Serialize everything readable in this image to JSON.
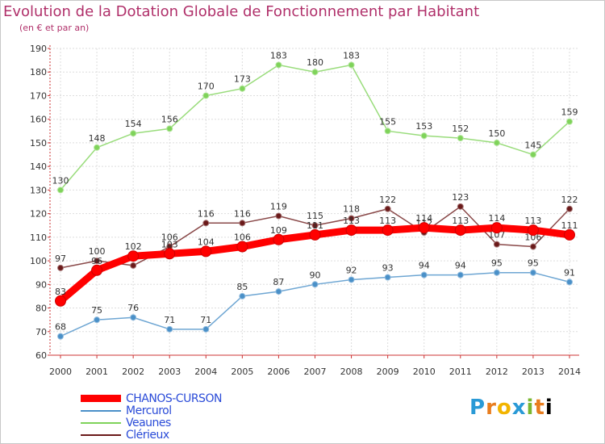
{
  "title": "Evolution de la Dotation Globale de Fonctionnement par Habitant",
  "subtitle": "(en € et par an)",
  "logo": {
    "text": "Proxiti"
  },
  "chart_data": {
    "type": "line",
    "title": "Evolution de la Dotation Globale de Fonctionnement par Habitant",
    "subtitle": "(en € et par an)",
    "x": [
      "2000",
      "2001",
      "2002",
      "2003",
      "2004",
      "2005",
      "2006",
      "2007",
      "2008",
      "2009",
      "2010",
      "2011",
      "2012",
      "2013",
      "2014"
    ],
    "yticks": [
      60,
      70,
      80,
      90,
      100,
      110,
      120,
      130,
      140,
      150,
      160,
      170,
      180,
      190
    ],
    "ylim": [
      60,
      190
    ],
    "grid": true,
    "legend_position": "bottom-left",
    "series": [
      {
        "name": "Clérieux",
        "color": "#6b1a1a",
        "values": [
          97,
          100,
          98,
          106,
          116,
          116,
          119,
          115,
          118,
          122,
          112,
          123,
          107,
          106,
          122
        ]
      },
      {
        "name": "Veaunes",
        "color": "#7fd35a",
        "values": [
          130,
          148,
          154,
          156,
          170,
          173,
          183,
          180,
          183,
          155,
          153,
          152,
          150,
          145,
          159
        ]
      },
      {
        "name": "Mercurol",
        "color": "#4a90c8",
        "values": [
          68,
          75,
          76,
          71,
          71,
          85,
          87,
          90,
          92,
          93,
          94,
          94,
          95,
          95,
          91
        ]
      },
      {
        "name": "CHANOS-CURSON",
        "color": "#ff0000",
        "values": [
          83,
          96,
          102,
          103,
          104,
          106,
          109,
          111,
          113,
          113,
          114,
          113,
          114,
          113,
          111
        ]
      }
    ],
    "legend": [
      "CHANOS-CURSON",
      "Mercurol",
      "Veaunes",
      "Clérieux"
    ]
  }
}
